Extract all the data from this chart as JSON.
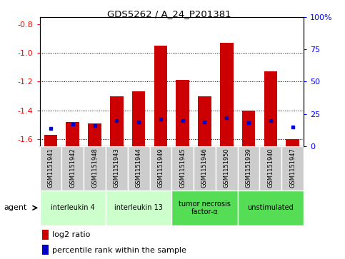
{
  "title": "GDS5262 / A_24_P201381",
  "samples": [
    "GSM1151941",
    "GSM1151942",
    "GSM1151948",
    "GSM1151943",
    "GSM1151944",
    "GSM1151949",
    "GSM1151945",
    "GSM1151946",
    "GSM1151950",
    "GSM1151939",
    "GSM1151940",
    "GSM1151947"
  ],
  "log2_ratio": [
    -1.57,
    -1.48,
    -1.49,
    -1.3,
    -1.27,
    -0.95,
    -1.19,
    -1.3,
    -0.93,
    -1.4,
    -1.13,
    -1.6
  ],
  "percentile_rank": [
    14,
    17,
    16,
    20,
    19,
    21,
    20,
    19,
    22,
    18,
    20,
    15
  ],
  "agents": [
    {
      "label": "interleukin 4",
      "start": 0,
      "end": 3,
      "color": "#ccffcc"
    },
    {
      "label": "interleukin 13",
      "start": 3,
      "end": 6,
      "color": "#ccffcc"
    },
    {
      "label": "tumor necrosis\nfactor-α",
      "start": 6,
      "end": 9,
      "color": "#55dd55"
    },
    {
      "label": "unstimulated",
      "start": 9,
      "end": 12,
      "color": "#55dd55"
    }
  ],
  "ylim_left": [
    -1.65,
    -0.75
  ],
  "ylim_right": [
    0,
    100
  ],
  "yticks_left": [
    -1.6,
    -1.4,
    -1.2,
    -1.0,
    -0.8
  ],
  "yticks_right": [
    0,
    25,
    50,
    75,
    100
  ],
  "bar_color": "#cc0000",
  "dot_color": "#0000cc",
  "sample_box_color": "#cccccc",
  "legend_log2_color": "#cc0000",
  "legend_pct_color": "#0000cc"
}
